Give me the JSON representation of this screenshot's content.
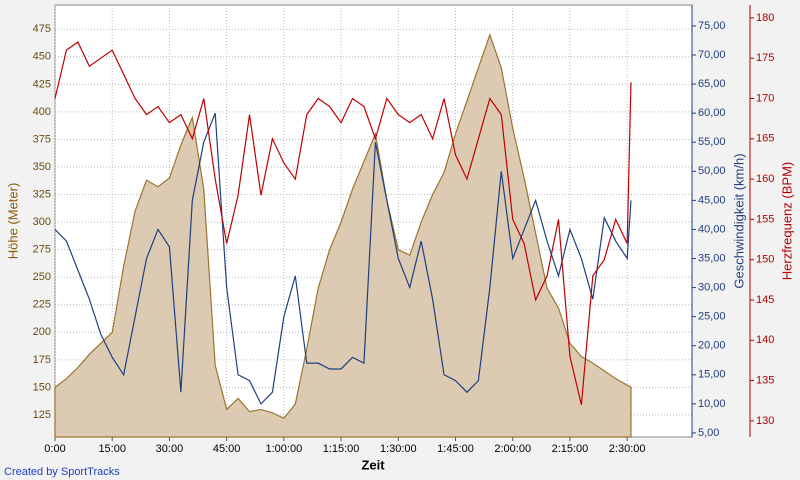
{
  "chart_data": {
    "type": "line",
    "x_label": "Zeit",
    "credit": "Created by SportTracks",
    "x": [
      0,
      3,
      6,
      9,
      12,
      15,
      18,
      21,
      24,
      27,
      30,
      33,
      36,
      39,
      42,
      45,
      48,
      51,
      54,
      57,
      60,
      63,
      66,
      69,
      72,
      75,
      78,
      81,
      84,
      87,
      90,
      93,
      96,
      99,
      102,
      105,
      108,
      111,
      114,
      117,
      120,
      123,
      126,
      129,
      132,
      135,
      138,
      141,
      144,
      147,
      150,
      151
    ],
    "xlim": [
      0,
      167
    ],
    "xticks": [
      {
        "value": 0,
        "label": "0:00"
      },
      {
        "value": 15,
        "label": "15:00"
      },
      {
        "value": 30,
        "label": "30:00"
      },
      {
        "value": 45,
        "label": "45:00"
      },
      {
        "value": 60,
        "label": "1:00:00"
      },
      {
        "value": 75,
        "label": "1:15:00"
      },
      {
        "value": 90,
        "label": "1:30:00"
      },
      {
        "value": 105,
        "label": "1:45:00"
      },
      {
        "value": 120,
        "label": "2:00:00"
      },
      {
        "value": 135,
        "label": "2:15:00"
      },
      {
        "value": 150,
        "label": "2:30:00"
      }
    ],
    "y_label": "Höhe (Meter)",
    "ylim": [
      105,
      497
    ],
    "yticks": [
      125,
      150,
      175,
      200,
      225,
      250,
      275,
      300,
      325,
      350,
      375,
      400,
      425,
      450,
      475
    ],
    "y2_label": "Geschwindigkeit (km/h)",
    "y2lim": [
      4.3,
      78.6
    ],
    "y2ticks": [
      {
        "value": 5,
        "label": "5,00"
      },
      {
        "value": 10,
        "label": "10,00"
      },
      {
        "value": 15,
        "label": "15,00"
      },
      {
        "value": 20,
        "label": "20,00"
      },
      {
        "value": 25,
        "label": "25,00"
      },
      {
        "value": 30,
        "label": "30,00"
      },
      {
        "value": 35,
        "label": "35,00"
      },
      {
        "value": 40,
        "label": "40,00"
      },
      {
        "value": 45,
        "label": "45,00"
      },
      {
        "value": 50,
        "label": "50,00"
      },
      {
        "value": 55,
        "label": "55,00"
      },
      {
        "value": 60,
        "label": "60,00"
      },
      {
        "value": 65,
        "label": "65,00"
      },
      {
        "value": 70,
        "label": "70,00"
      },
      {
        "value": 75,
        "label": "75,00"
      }
    ],
    "y3_label": "Herzfrequenz (BPM)",
    "y3lim": [
      128,
      181.6
    ],
    "y3ticks": [
      130,
      135,
      140,
      145,
      150,
      155,
      160,
      165,
      170,
      175,
      180
    ],
    "grid": true,
    "series": [
      {
        "axis": "y",
        "style": "area",
        "color": "#9b7430",
        "fill": "#dccbb2",
        "values": [
          150,
          158,
          168,
          180,
          190,
          200,
          260,
          310,
          338,
          332,
          340,
          370,
          395,
          330,
          170,
          130,
          140,
          128,
          130,
          127,
          122,
          135,
          185,
          240,
          275,
          300,
          330,
          355,
          380,
          320,
          275,
          270,
          300,
          325,
          345,
          380,
          410,
          440,
          470,
          440,
          385,
          340,
          290,
          240,
          222,
          190,
          178,
          172,
          165,
          158,
          152,
          150
        ]
      },
      {
        "axis": "y2",
        "style": "line",
        "color": "#1f3f7f",
        "values": [
          40,
          38,
          33,
          28,
          22,
          18,
          15,
          25,
          35,
          40,
          37,
          12,
          45,
          55,
          60,
          30,
          15,
          14,
          10,
          12,
          25,
          32,
          17,
          17,
          16,
          16,
          18,
          17,
          55,
          45,
          35,
          30,
          38,
          28,
          15,
          14,
          12,
          14,
          30,
          50,
          35,
          40,
          45,
          38,
          32,
          40,
          35,
          28,
          42,
          38,
          35,
          45
        ]
      },
      {
        "axis": "y3",
        "style": "line",
        "color": "#c00000",
        "values": [
          170,
          176,
          177,
          174,
          175,
          176,
          173,
          170,
          168,
          169,
          167,
          168,
          165,
          170,
          160,
          152,
          158,
          168,
          158,
          165,
          162,
          160,
          168,
          170,
          169,
          167,
          170,
          169,
          165,
          170,
          168,
          167,
          168,
          165,
          170,
          163,
          160,
          165,
          170,
          168,
          155,
          152,
          145,
          148,
          155,
          138,
          132,
          148,
          150,
          155,
          152,
          172
        ]
      }
    ]
  }
}
